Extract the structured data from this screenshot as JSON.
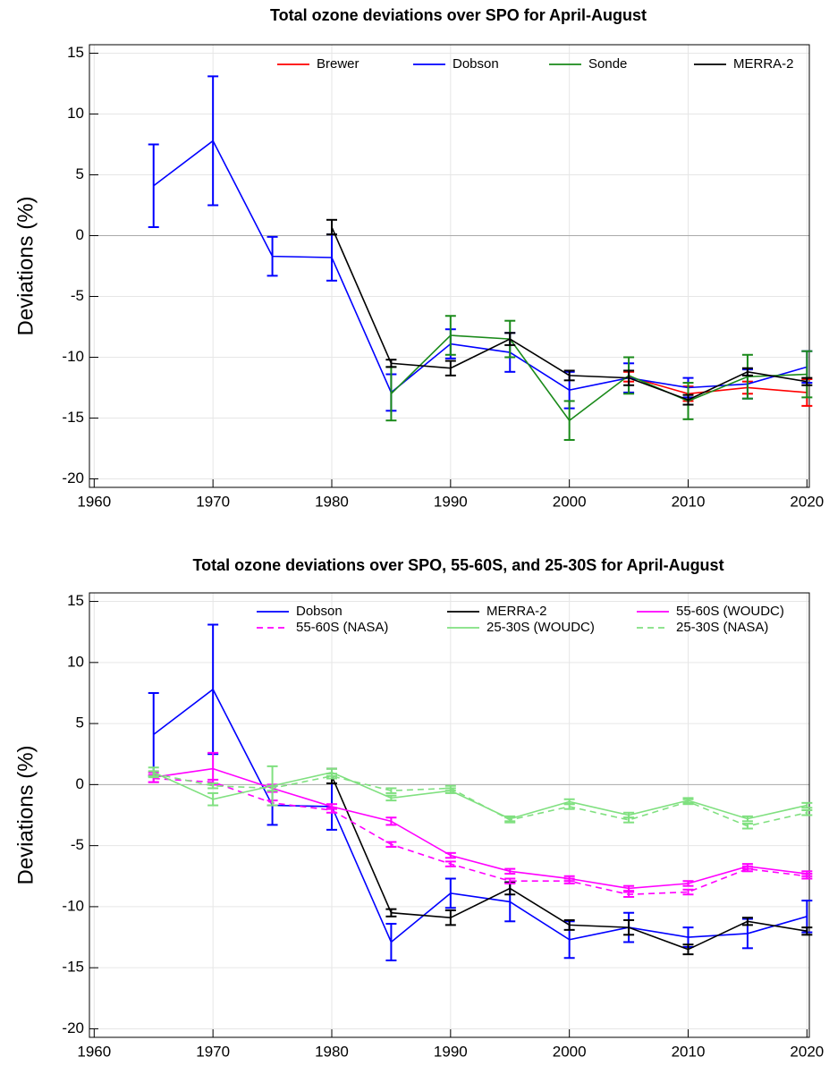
{
  "chart_data": [
    {
      "type": "line",
      "title": "Total ozone deviations over SPO for April-August",
      "y_label": "Deviations (%)",
      "x": [
        1965,
        1970,
        1975,
        1980,
        1985,
        1990,
        1995,
        2000,
        2005,
        2010,
        2015,
        2020
      ],
      "xlim": [
        1959.6,
        2020.2
      ],
      "xticks": [
        1960,
        1970,
        1980,
        1990,
        2000,
        2010,
        2020
      ],
      "ylim": [
        -20.7,
        15.7
      ],
      "yticks": [
        -20,
        -15,
        -10,
        -5,
        0,
        5,
        10,
        15
      ],
      "grid": true,
      "legend": "top",
      "series": [
        {
          "name": "Brewer",
          "color": "#ff0000",
          "values": [
            null,
            null,
            null,
            null,
            null,
            null,
            null,
            null,
            -11.6,
            -13.0,
            -12.5,
            -12.9
          ],
          "errors": [
            null,
            null,
            null,
            null,
            null,
            null,
            null,
            null,
            0.4,
            0.6,
            0.5,
            1.1
          ]
        },
        {
          "name": "Dobson",
          "color": "#0000ff",
          "values": [
            4.1,
            7.8,
            -1.7,
            -1.8,
            -12.9,
            -8.9,
            -9.6,
            -12.7,
            -11.7,
            -12.5,
            -12.2,
            -10.8
          ],
          "errors": [
            3.4,
            5.3,
            1.6,
            1.9,
            1.5,
            1.2,
            1.6,
            1.5,
            1.2,
            0.8,
            1.2,
            1.3
          ]
        },
        {
          "name": "Sonde",
          "color": "#1a8a1a",
          "values": [
            null,
            null,
            null,
            null,
            -13.0,
            -8.2,
            -8.5,
            -15.2,
            -11.5,
            -13.6,
            -11.6,
            -11.4
          ],
          "errors": [
            null,
            null,
            null,
            null,
            2.2,
            1.6,
            1.5,
            1.6,
            1.5,
            1.5,
            1.8,
            1.9
          ]
        },
        {
          "name": "MERRA-2",
          "color": "#000000",
          "values": [
            null,
            null,
            null,
            0.7,
            -10.5,
            -10.9,
            -8.5,
            -11.5,
            -11.7,
            -13.5,
            -11.2,
            -12.0
          ],
          "errors": [
            null,
            null,
            null,
            0.6,
            0.3,
            0.6,
            0.5,
            0.4,
            0.6,
            0.4,
            0.3,
            0.3
          ]
        }
      ]
    },
    {
      "type": "line",
      "title": "Total ozone deviations over SPO, 55-60S, and 25-30S for April-August",
      "y_label": "Deviations (%)",
      "x": [
        1965,
        1970,
        1975,
        1980,
        1985,
        1990,
        1995,
        2000,
        2005,
        2010,
        2015,
        2020
      ],
      "xlim": [
        1959.6,
        2020.2
      ],
      "xticks": [
        1960,
        1970,
        1980,
        1990,
        2000,
        2010,
        2020
      ],
      "ylim": [
        -20.7,
        15.7
      ],
      "yticks": [
        -20,
        -15,
        -10,
        -5,
        0,
        5,
        10,
        15
      ],
      "grid": true,
      "legend": "top",
      "series": [
        {
          "name": "Dobson",
          "color": "#0000ff",
          "values": [
            4.1,
            7.8,
            -1.7,
            -1.8,
            -12.9,
            -8.9,
            -9.6,
            -12.7,
            -11.7,
            -12.5,
            -12.2,
            -10.8
          ],
          "errors": [
            3.4,
            5.3,
            1.6,
            1.9,
            1.5,
            1.2,
            1.6,
            1.5,
            1.2,
            0.8,
            1.2,
            1.3
          ]
        },
        {
          "name": "MERRA-2",
          "color": "#000000",
          "values": [
            null,
            null,
            null,
            0.7,
            -10.5,
            -10.9,
            -8.5,
            -11.5,
            -11.7,
            -13.5,
            -11.2,
            -12.0
          ],
          "errors": [
            null,
            null,
            null,
            0.6,
            0.3,
            0.6,
            0.5,
            0.4,
            0.6,
            0.4,
            0.3,
            0.3
          ]
        },
        {
          "name": "55-60S (WOUDC)",
          "color": "#ff00ff",
          "values": [
            0.6,
            1.3,
            -0.3,
            -1.8,
            -3.0,
            -5.8,
            -7.1,
            -7.7,
            -8.5,
            -8.1,
            -6.7,
            -7.3
          ],
          "errors": [
            0.4,
            1.3,
            0.3,
            0.2,
            0.3,
            0.2,
            0.2,
            0.2,
            0.2,
            0.2,
            0.2,
            0.2
          ]
        },
        {
          "name": "55-60S (NASA)",
          "color": "#ff00ff",
          "dashed": true,
          "values": [
            0.5,
            0.2,
            -1.5,
            -2.1,
            -4.9,
            -6.5,
            -7.9,
            -7.9,
            -9.0,
            -8.8,
            -6.9,
            -7.5
          ],
          "errors": [
            0.3,
            0.2,
            0.2,
            0.2,
            0.2,
            0.2,
            0.2,
            0.2,
            0.2,
            0.2,
            0.2,
            0.2
          ]
        },
        {
          "name": "25-30S (WOUDC)",
          "color": "#80e080",
          "values": [
            1.0,
            -1.2,
            -0.1,
            1.0,
            -1.1,
            -0.5,
            -2.8,
            -1.4,
            -2.5,
            -1.3,
            -2.8,
            -1.7
          ],
          "errors": [
            0.4,
            0.5,
            1.6,
            0.3,
            0.2,
            0.2,
            0.2,
            0.2,
            0.2,
            0.2,
            0.2,
            0.2
          ]
        },
        {
          "name": "25-30S (NASA)",
          "color": "#80e080",
          "dashed": true,
          "values": [
            0.9,
            -0.1,
            -0.3,
            0.7,
            -0.5,
            -0.3,
            -2.9,
            -1.8,
            -2.9,
            -1.4,
            -3.4,
            -2.3
          ],
          "errors": [
            0.2,
            0.2,
            0.2,
            0.2,
            0.2,
            0.2,
            0.2,
            0.2,
            0.2,
            0.2,
            0.2,
            0.2
          ]
        }
      ]
    }
  ]
}
